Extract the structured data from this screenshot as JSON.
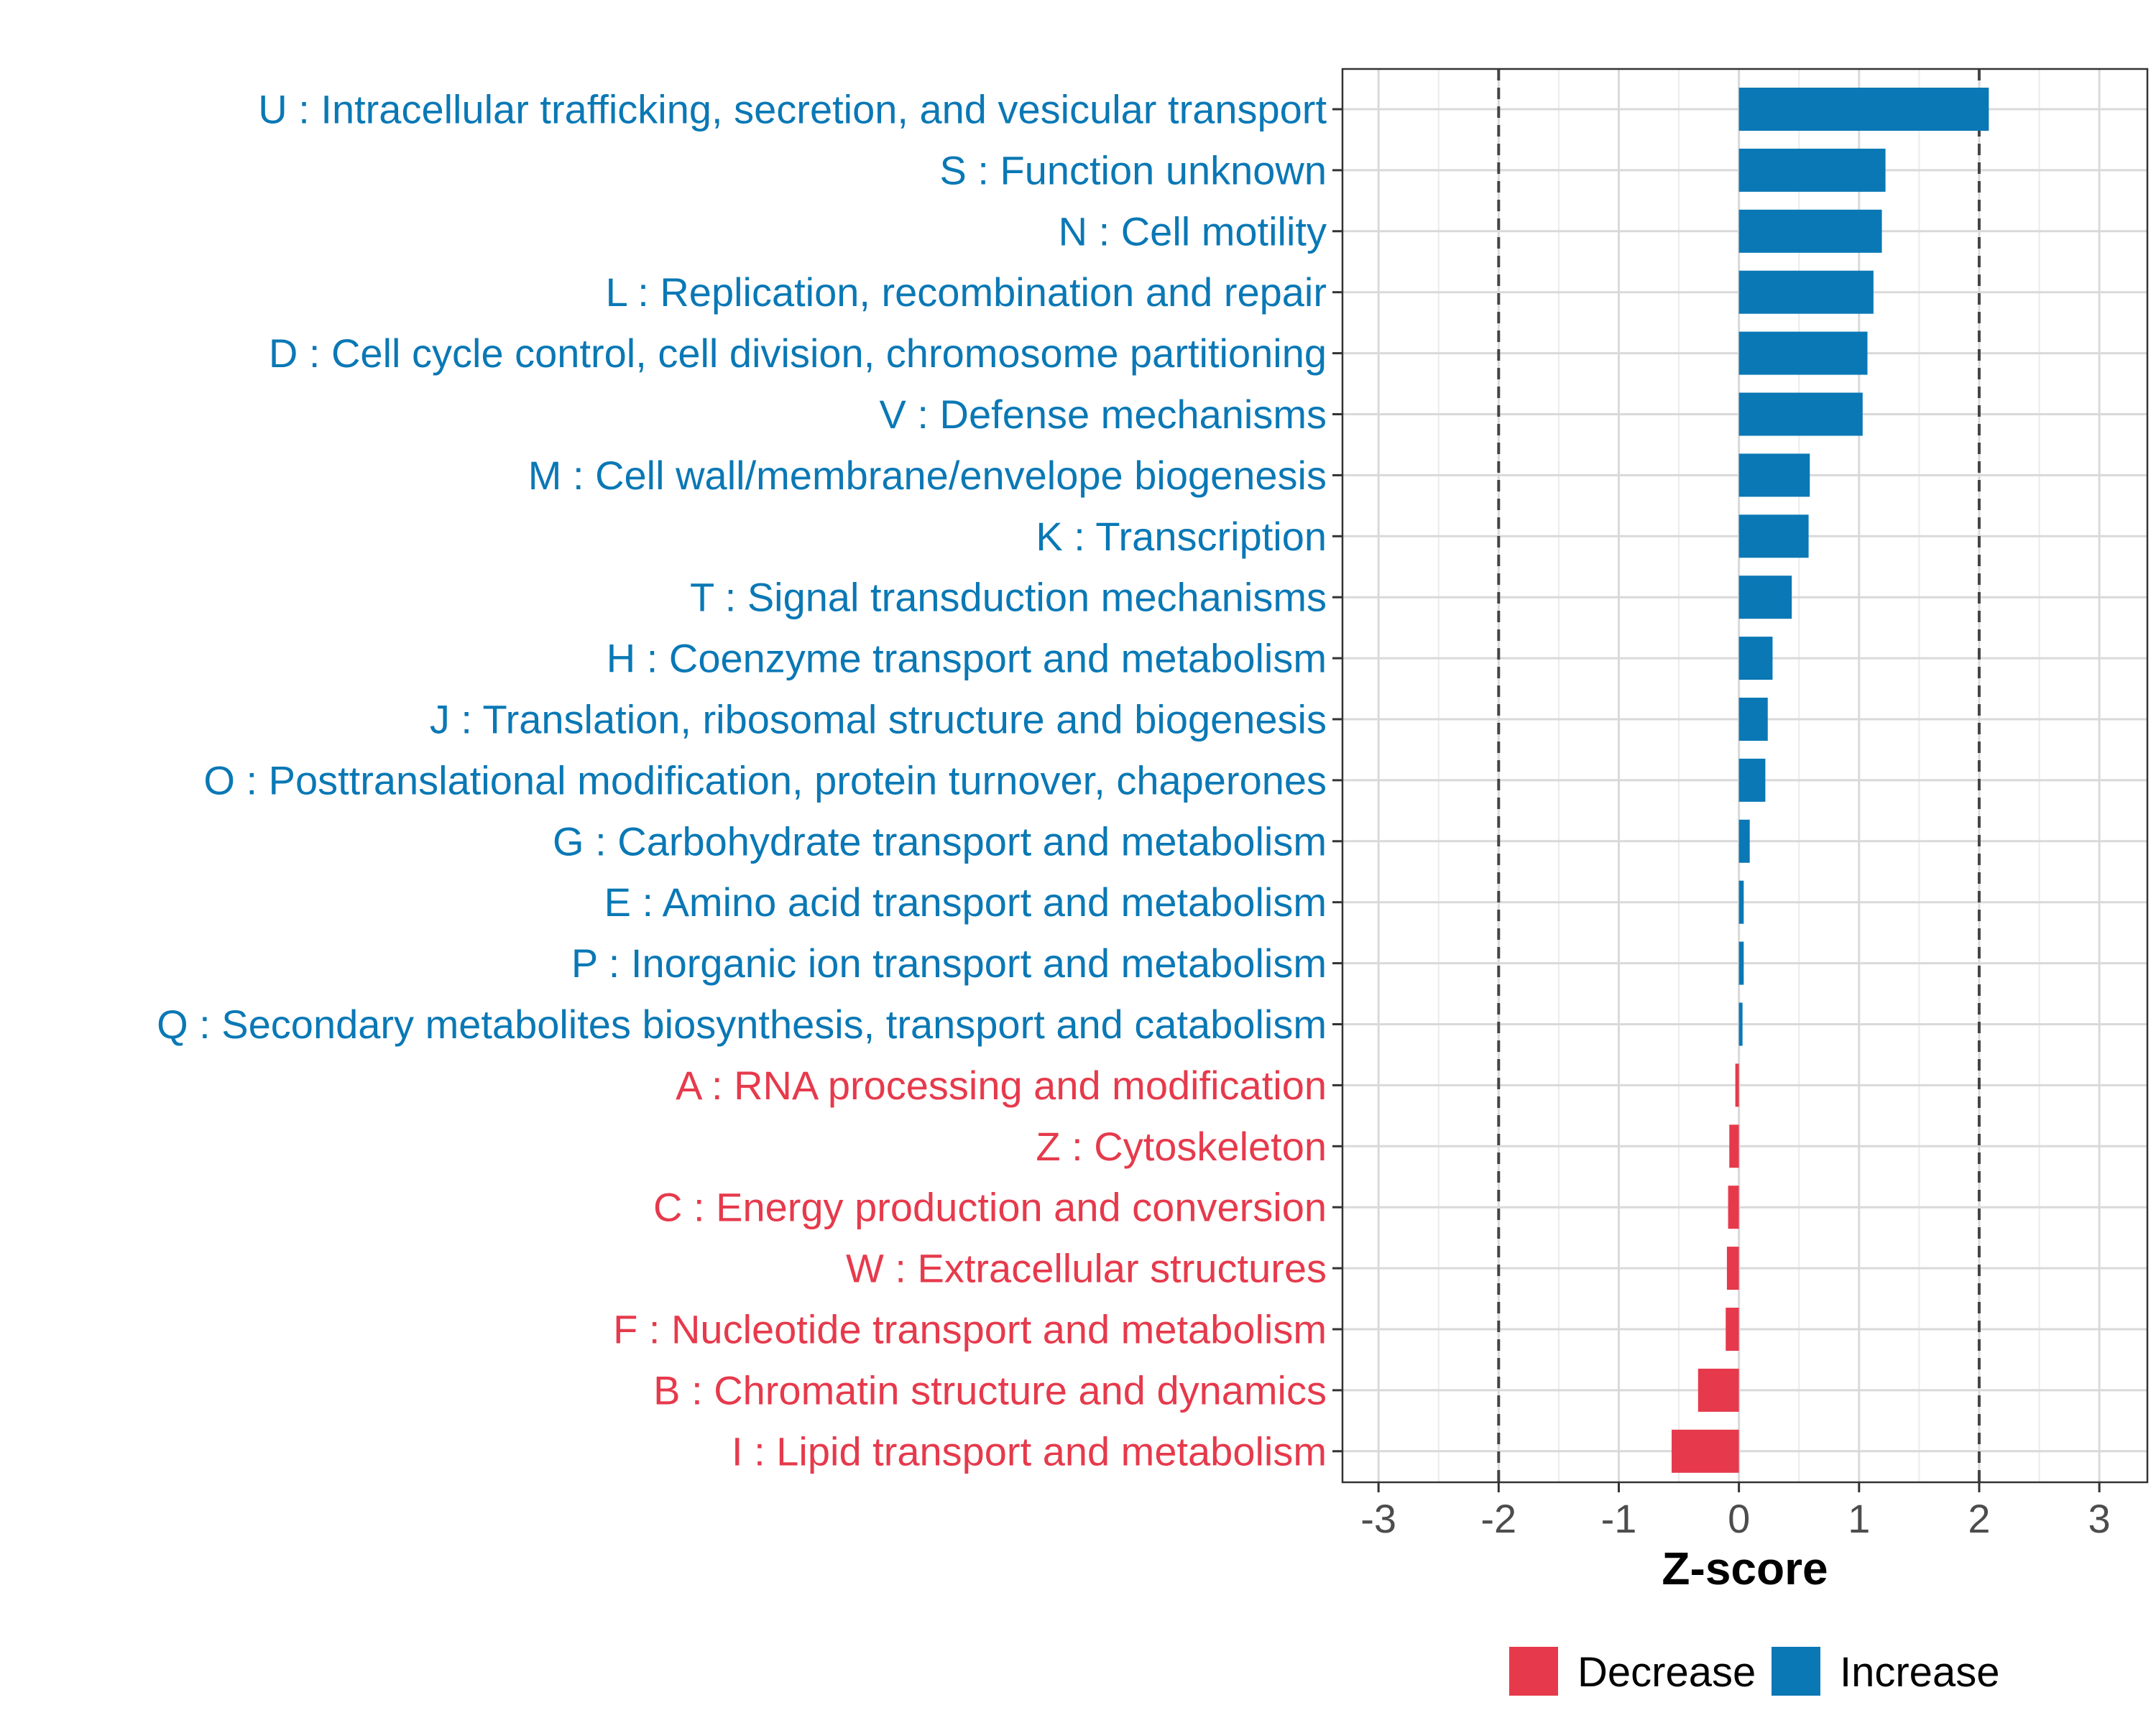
{
  "chart_data": {
    "type": "bar",
    "orientation": "horizontal",
    "xlabel": "Z-score",
    "ylabel": "",
    "xlim": [
      -3.3,
      3.4
    ],
    "xticks": [
      -3,
      -2,
      -1,
      0,
      1,
      2,
      3
    ],
    "xtick_labels": [
      "-3",
      "-2",
      "-1",
      "0",
      "1",
      "2",
      "3"
    ],
    "threshold_lines": [
      -2,
      2
    ],
    "grid": true,
    "legend_position": "bottom",
    "colors": {
      "Increase": "#0a78b5",
      "Decrease": "#e63a4c"
    },
    "legend": [
      {
        "label": "Decrease",
        "color": "#e63a4c"
      },
      {
        "label": "Increase",
        "color": "#0a78b5"
      }
    ],
    "categories": [
      "U : Intracellular trafficking, secretion, and vesicular transport",
      "S : Function unknown",
      "N : Cell motility",
      "L : Replication, recombination and repair",
      "D : Cell cycle control, cell division, chromosome partitioning",
      "V : Defense mechanisms",
      "M : Cell wall/membrane/envelope biogenesis",
      "K : Transcription",
      "T : Signal transduction mechanisms",
      "H : Coenzyme transport and metabolism",
      "J : Translation, ribosomal structure and biogenesis",
      "O : Posttranslational modification, protein turnover, chaperones",
      "G : Carbohydrate transport and metabolism",
      "E : Amino acid transport and metabolism",
      "P : Inorganic ion transport and metabolism",
      "Q : Secondary metabolites biosynthesis, transport and catabolism",
      "A : RNA processing and modification",
      "Z : Cytoskeleton",
      "C : Energy production and conversion",
      "W : Extracellular structures",
      "F : Nucleotide transport and metabolism",
      "B : Chromatin structure and dynamics",
      "I : Lipid transport and metabolism"
    ],
    "values": [
      2.08,
      1.22,
      1.19,
      1.12,
      1.07,
      1.03,
      0.59,
      0.58,
      0.44,
      0.28,
      0.24,
      0.22,
      0.09,
      0.04,
      0.04,
      0.03,
      -0.03,
      -0.08,
      -0.09,
      -0.1,
      -0.11,
      -0.34,
      -0.56
    ],
    "groups": [
      "Increase",
      "Increase",
      "Increase",
      "Increase",
      "Increase",
      "Increase",
      "Increase",
      "Increase",
      "Increase",
      "Increase",
      "Increase",
      "Increase",
      "Increase",
      "Increase",
      "Increase",
      "Increase",
      "Decrease",
      "Decrease",
      "Decrease",
      "Decrease",
      "Decrease",
      "Decrease",
      "Decrease"
    ]
  }
}
